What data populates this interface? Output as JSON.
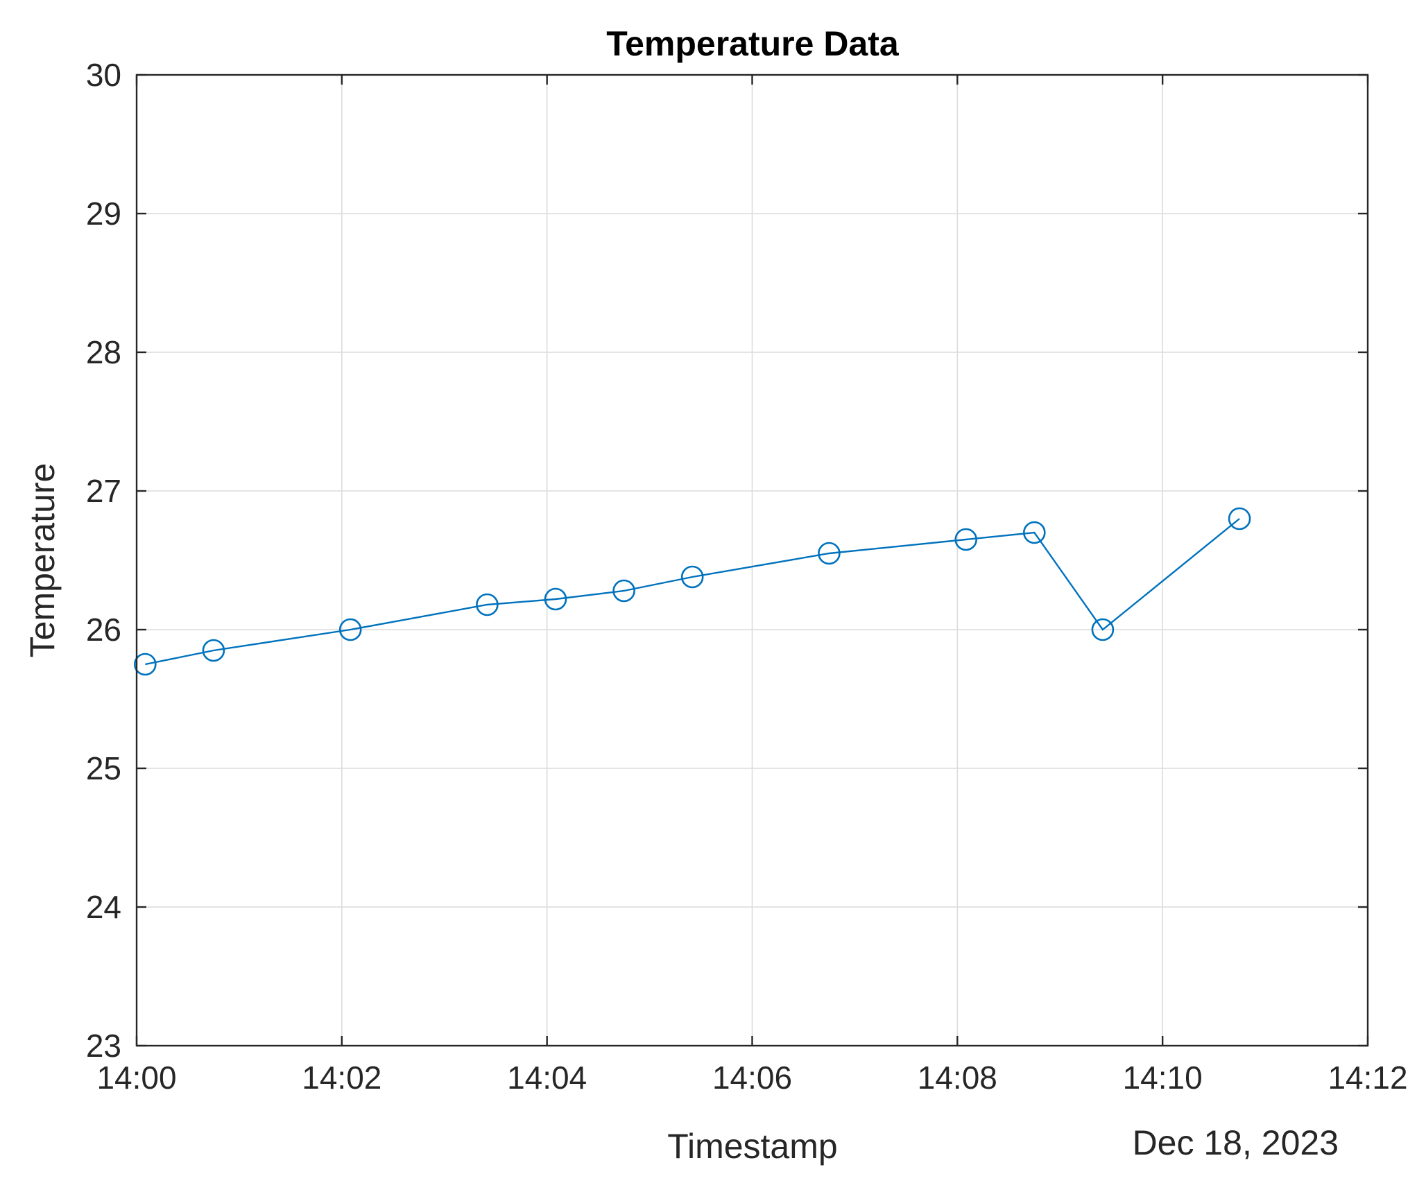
{
  "chart_data": {
    "type": "line",
    "title": "Temperature Data",
    "xlabel": "Timestamp",
    "ylabel": "Temperature",
    "date_label": "Dec 18, 2023",
    "x_tick_labels": [
      "14:00",
      "14:02",
      "14:04",
      "14:06",
      "14:08",
      "14:10",
      "14:12"
    ],
    "y_tick_labels": [
      "23",
      "24",
      "25",
      "26",
      "27",
      "28",
      "29",
      "30"
    ],
    "xlim": [
      "14:00",
      "14:12"
    ],
    "ylim": [
      23,
      30
    ],
    "grid": true,
    "marker": "circle",
    "series": [
      {
        "color": "#0072BD",
        "x": [
          "14:00:05",
          "14:00:45",
          "14:02:05",
          "14:03:25",
          "14:04:05",
          "14:04:45",
          "14:05:25",
          "14:06:45",
          "14:08:05",
          "14:08:45",
          "14:09:25",
          "14:10:45"
        ],
        "values": [
          25.75,
          25.85,
          26.0,
          26.18,
          26.22,
          26.28,
          26.38,
          26.55,
          26.65,
          26.7,
          26.0,
          26.8
        ]
      }
    ]
  }
}
